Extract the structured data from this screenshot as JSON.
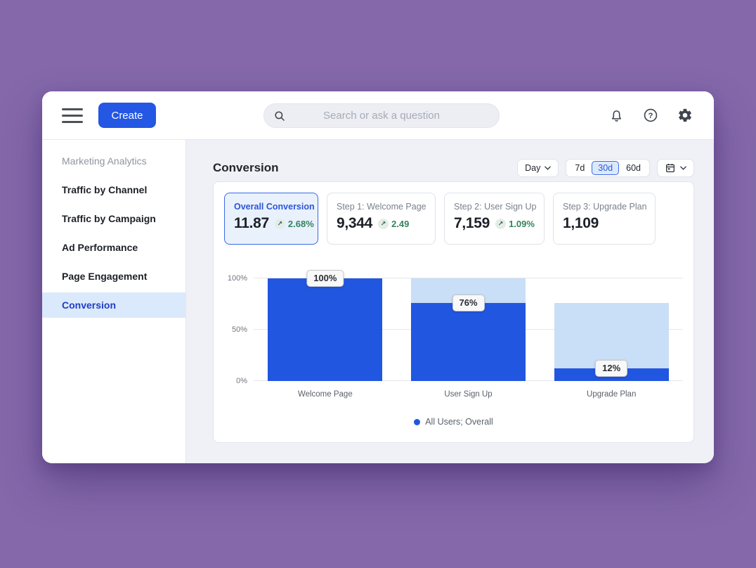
{
  "ui": {
    "delta_arrow": "↗"
  },
  "topbar": {
    "create_label": "Create",
    "search_placeholder": "Search or ask a question"
  },
  "sidebar": {
    "section_title": "Marketing Analytics",
    "items": [
      {
        "label": "Traffic by Channel",
        "active": false
      },
      {
        "label": "Traffic by Campaign",
        "active": false
      },
      {
        "label": "Ad Performance",
        "active": false
      },
      {
        "label": "Page Engagement",
        "active": false
      },
      {
        "label": "Conversion",
        "active": true
      }
    ]
  },
  "header": {
    "title": "Conversion",
    "granularity": "Day",
    "range_options": [
      "7d",
      "30d",
      "60d"
    ],
    "selected_range": "30d"
  },
  "metric_cards": [
    {
      "label": "Overall Conversion",
      "value": "11.87",
      "delta": "2.68%",
      "selected": true
    },
    {
      "label": "Step 1: Welcome Page",
      "value": "9,344",
      "delta": "2.49",
      "selected": false
    },
    {
      "label": "Step 2: User Sign Up",
      "value": "7,159",
      "delta": "1.09%",
      "selected": false
    },
    {
      "label": "Step 3: Upgrade Plan",
      "value": "1,109",
      "delta": "",
      "selected": false
    }
  ],
  "chart_data": {
    "type": "bar",
    "subtype": "funnel-conversion",
    "categories": [
      "Welcome Page",
      "User Sign Up",
      "Upgrade Plan"
    ],
    "series": [
      {
        "name": "All Users; Overall",
        "values": [
          100,
          76,
          12
        ],
        "labels": [
          "100%",
          "76%",
          "12%"
        ]
      },
      {
        "name": "Previous step background",
        "values": [
          100,
          100,
          76
        ]
      }
    ],
    "y_ticks": [
      "100%",
      "50%",
      "0%"
    ],
    "y_tick_positions": [
      100,
      50,
      0
    ],
    "ylim": [
      0,
      100
    ],
    "grid": true,
    "legend": {
      "position": "bottom-center",
      "label": "All Users; Overall"
    },
    "colors": {
      "bar": "#2156e0",
      "bar_background": "#c9def7",
      "legend_dot": "#2156e0"
    }
  },
  "colors": {
    "accent_blue": "#2457e4",
    "selected_item_bg": "#dbe9fc",
    "positive_green": "#35835e",
    "main_bg": "#eff1f6"
  }
}
